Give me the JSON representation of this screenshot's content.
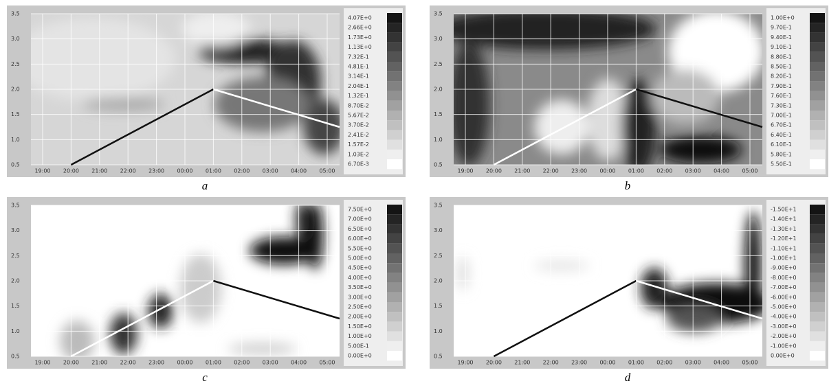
{
  "axes": {
    "yticks": [
      0.5,
      {
        "value": 1,
        "label": "1.0"
      },
      1.5,
      {
        "value": 2,
        "label": "2.0"
      },
      2.5,
      {
        "value": 3,
        "label": "3.0"
      },
      3.5
    ],
    "xticks": [
      "19:00",
      "20:00",
      "21:00",
      "22:00",
      "23:00",
      "00:00",
      "01:00",
      "02:00",
      "03:00",
      "04:00",
      "05:00"
    ]
  },
  "panels": [
    {
      "label": "a",
      "colorbar": [
        "4.07E+0",
        "2.66E+0",
        "1.73E+0",
        "1.13E+0",
        "7.32E-1",
        "4.81E-1",
        "3.14E-1",
        "2.04E-1",
        "1.32E-1",
        "8.70E-2",
        "5.67E-2",
        "3.70E-2",
        "2.41E-2",
        "1.57E-2",
        "1.03E-2",
        "6.70E-3"
      ]
    },
    {
      "label": "b",
      "colorbar": [
        "1.00E+0",
        "9.70E-1",
        "9.40E-1",
        "9.10E-1",
        "8.80E-1",
        "8.50E-1",
        "8.20E-1",
        "7.90E-1",
        "7.60E-1",
        "7.30E-1",
        "7.00E-1",
        "6.70E-1",
        "6.40E-1",
        "6.10E-1",
        "5.80E-1",
        "5.50E-1"
      ]
    },
    {
      "label": "c",
      "colorbar": [
        "7.50E+0",
        "7.00E+0",
        "6.50E+0",
        "6.00E+0",
        "5.50E+0",
        "5.00E+0",
        "4.50E+0",
        "4.00E+0",
        "3.50E+0",
        "3.00E+0",
        "2.50E+0",
        "2.00E+0",
        "1.50E+0",
        "1.00E+0",
        "5.00E-1",
        "0.00E+0"
      ]
    },
    {
      "label": "d",
      "colorbar": [
        "-1.50E+1",
        "-1.40E+1",
        "-1.30E+1",
        "-1.20E+1",
        "-1.10E+1",
        "-1.00E+1",
        "-9.00E+0",
        "-8.00E+0",
        "-7.00E+0",
        "-6.00E+0",
        "-5.00E+0",
        "-4.00E+0",
        "-3.00E+0",
        "-2.00E+0",
        "-1.00E+0",
        "0.00E+0"
      ]
    }
  ]
}
